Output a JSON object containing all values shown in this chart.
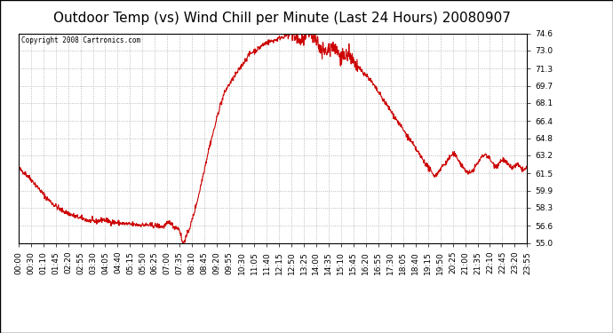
{
  "title": "Outdoor Temp (vs) Wind Chill per Minute (Last 24 Hours) 20080907",
  "copyright_text": "Copyright 2008 Cartronics.com",
  "line_color": "#cc0000",
  "background_color": "#ffffff",
  "plot_bg_color": "#ffffff",
  "grid_color": "#aaaaaa",
  "border_color": "#000000",
  "ylim": [
    55.0,
    74.6
  ],
  "yticks": [
    55.0,
    56.6,
    58.3,
    59.9,
    61.5,
    63.2,
    64.8,
    66.4,
    68.1,
    69.7,
    71.3,
    73.0,
    74.6
  ],
  "title_fontsize": 11,
  "tick_fontsize": 6.5,
  "xtick_labels": [
    "00:00",
    "00:30",
    "01:10",
    "01:45",
    "02:20",
    "02:55",
    "03:30",
    "04:05",
    "04:40",
    "05:15",
    "05:50",
    "06:25",
    "07:00",
    "07:35",
    "08:10",
    "08:45",
    "09:20",
    "09:55",
    "10:30",
    "11:05",
    "11:40",
    "12:15",
    "12:50",
    "13:25",
    "14:00",
    "14:35",
    "15:10",
    "15:45",
    "16:20",
    "16:55",
    "17:30",
    "18:05",
    "18:40",
    "19:15",
    "19:50",
    "20:25",
    "21:00",
    "21:35",
    "22:10",
    "22:45",
    "23:20",
    "23:55"
  ],
  "control_points": [
    [
      0,
      62.0
    ],
    [
      20,
      61.5
    ],
    [
      40,
      60.8
    ],
    [
      60,
      60.0
    ],
    [
      80,
      59.2
    ],
    [
      100,
      58.6
    ],
    [
      120,
      58.1
    ],
    [
      140,
      57.8
    ],
    [
      160,
      57.5
    ],
    [
      180,
      57.3
    ],
    [
      200,
      57.1
    ],
    [
      220,
      57.0
    ],
    [
      240,
      57.2
    ],
    [
      260,
      57.0
    ],
    [
      280,
      56.9
    ],
    [
      300,
      56.8
    ],
    [
      320,
      56.75
    ],
    [
      340,
      56.7
    ],
    [
      360,
      56.7
    ],
    [
      380,
      56.65
    ],
    [
      400,
      56.6
    ],
    [
      410,
      56.5
    ],
    [
      420,
      56.8
    ],
    [
      430,
      57.0
    ],
    [
      435,
      56.7
    ],
    [
      440,
      56.5
    ],
    [
      445,
      56.5
    ],
    [
      450,
      56.4
    ],
    [
      455,
      56.3
    ],
    [
      460,
      55.7
    ],
    [
      462,
      55.3
    ],
    [
      464,
      55.1
    ],
    [
      466,
      55.0
    ],
    [
      468,
      55.1
    ],
    [
      470,
      55.3
    ],
    [
      475,
      55.6
    ],
    [
      480,
      56.0
    ],
    [
      490,
      57.0
    ],
    [
      500,
      58.2
    ],
    [
      510,
      59.5
    ],
    [
      520,
      61.0
    ],
    [
      530,
      62.5
    ],
    [
      540,
      64.0
    ],
    [
      550,
      65.2
    ],
    [
      555,
      65.8
    ],
    [
      560,
      66.5
    ],
    [
      570,
      67.8
    ],
    [
      575,
      68.2
    ],
    [
      580,
      68.8
    ],
    [
      590,
      69.5
    ],
    [
      600,
      70.0
    ],
    [
      610,
      70.5
    ],
    [
      620,
      71.0
    ],
    [
      630,
      71.5
    ],
    [
      640,
      72.0
    ],
    [
      650,
      72.5
    ],
    [
      660,
      72.8
    ],
    [
      670,
      73.0
    ],
    [
      680,
      73.2
    ],
    [
      690,
      73.5
    ],
    [
      700,
      73.7
    ],
    [
      710,
      73.8
    ],
    [
      720,
      73.9
    ],
    [
      730,
      74.0
    ],
    [
      740,
      74.2
    ],
    [
      750,
      74.3
    ],
    [
      755,
      74.4
    ],
    [
      760,
      74.5
    ],
    [
      765,
      74.55
    ],
    [
      770,
      74.6
    ],
    [
      775,
      74.55
    ],
    [
      780,
      74.4
    ],
    [
      785,
      74.2
    ],
    [
      790,
      74.0
    ],
    [
      795,
      73.9
    ],
    [
      800,
      73.8
    ],
    [
      805,
      74.0
    ],
    [
      810,
      74.2
    ],
    [
      815,
      74.4
    ],
    [
      820,
      74.5
    ],
    [
      825,
      74.6
    ],
    [
      830,
      74.5
    ],
    [
      835,
      74.3
    ],
    [
      840,
      74.0
    ],
    [
      845,
      73.7
    ],
    [
      850,
      73.5
    ],
    [
      855,
      73.3
    ],
    [
      860,
      73.2
    ],
    [
      865,
      73.0
    ],
    [
      870,
      72.8
    ],
    [
      875,
      73.0
    ],
    [
      880,
      73.2
    ],
    [
      885,
      73.4
    ],
    [
      890,
      73.5
    ],
    [
      895,
      73.3
    ],
    [
      900,
      73.0
    ],
    [
      905,
      72.8
    ],
    [
      910,
      72.6
    ],
    [
      915,
      72.5
    ],
    [
      920,
      72.4
    ],
    [
      925,
      72.5
    ],
    [
      930,
      72.6
    ],
    [
      935,
      72.5
    ],
    [
      940,
      72.3
    ],
    [
      945,
      72.0
    ],
    [
      950,
      71.8
    ],
    [
      955,
      71.5
    ],
    [
      960,
      71.4
    ],
    [
      965,
      71.3
    ],
    [
      970,
      71.2
    ],
    [
      975,
      71.0
    ],
    [
      980,
      70.8
    ],
    [
      990,
      70.5
    ],
    [
      1000,
      70.0
    ],
    [
      1010,
      69.5
    ],
    [
      1020,
      69.0
    ],
    [
      1030,
      68.5
    ],
    [
      1040,
      68.0
    ],
    [
      1050,
      67.5
    ],
    [
      1060,
      67.0
    ],
    [
      1070,
      66.5
    ],
    [
      1080,
      66.0
    ],
    [
      1090,
      65.5
    ],
    [
      1100,
      65.0
    ],
    [
      1110,
      64.5
    ],
    [
      1120,
      64.0
    ],
    [
      1130,
      63.5
    ],
    [
      1140,
      63.0
    ],
    [
      1150,
      62.5
    ],
    [
      1160,
      62.0
    ],
    [
      1165,
      61.8
    ],
    [
      1170,
      61.5
    ],
    [
      1175,
      61.4
    ],
    [
      1180,
      61.3
    ],
    [
      1185,
      61.5
    ],
    [
      1190,
      61.8
    ],
    [
      1195,
      62.0
    ],
    [
      1200,
      62.2
    ],
    [
      1210,
      62.5
    ],
    [
      1215,
      62.8
    ],
    [
      1220,
      63.0
    ],
    [
      1225,
      63.2
    ],
    [
      1230,
      63.3
    ],
    [
      1235,
      63.2
    ],
    [
      1240,
      63.0
    ],
    [
      1245,
      62.8
    ],
    [
      1250,
      62.5
    ],
    [
      1255,
      62.2
    ],
    [
      1260,
      62.0
    ],
    [
      1265,
      61.8
    ],
    [
      1270,
      61.6
    ],
    [
      1275,
      61.5
    ],
    [
      1280,
      61.6
    ],
    [
      1285,
      61.8
    ],
    [
      1290,
      62.0
    ],
    [
      1295,
      62.3
    ],
    [
      1300,
      62.5
    ],
    [
      1305,
      62.8
    ],
    [
      1310,
      63.0
    ],
    [
      1315,
      63.2
    ],
    [
      1320,
      63.3
    ],
    [
      1325,
      63.2
    ],
    [
      1330,
      63.0
    ],
    [
      1335,
      62.8
    ],
    [
      1340,
      62.5
    ],
    [
      1345,
      62.3
    ],
    [
      1350,
      62.2
    ],
    [
      1355,
      62.3
    ],
    [
      1360,
      62.5
    ],
    [
      1365,
      62.7
    ],
    [
      1370,
      62.8
    ],
    [
      1375,
      62.7
    ],
    [
      1380,
      62.5
    ],
    [
      1385,
      62.3
    ],
    [
      1390,
      62.2
    ],
    [
      1395,
      62.0
    ],
    [
      1400,
      62.1
    ],
    [
      1405,
      62.2
    ],
    [
      1410,
      62.3
    ],
    [
      1415,
      62.2
    ],
    [
      1420,
      62.0
    ],
    [
      1425,
      61.9
    ],
    [
      1430,
      61.8
    ],
    [
      1435,
      62.0
    ],
    [
      1439,
      62.0
    ]
  ],
  "noise_seed": 42,
  "noise_scale": 0.12,
  "noisy_regions": [
    [
      760,
      960,
      0.35
    ]
  ]
}
